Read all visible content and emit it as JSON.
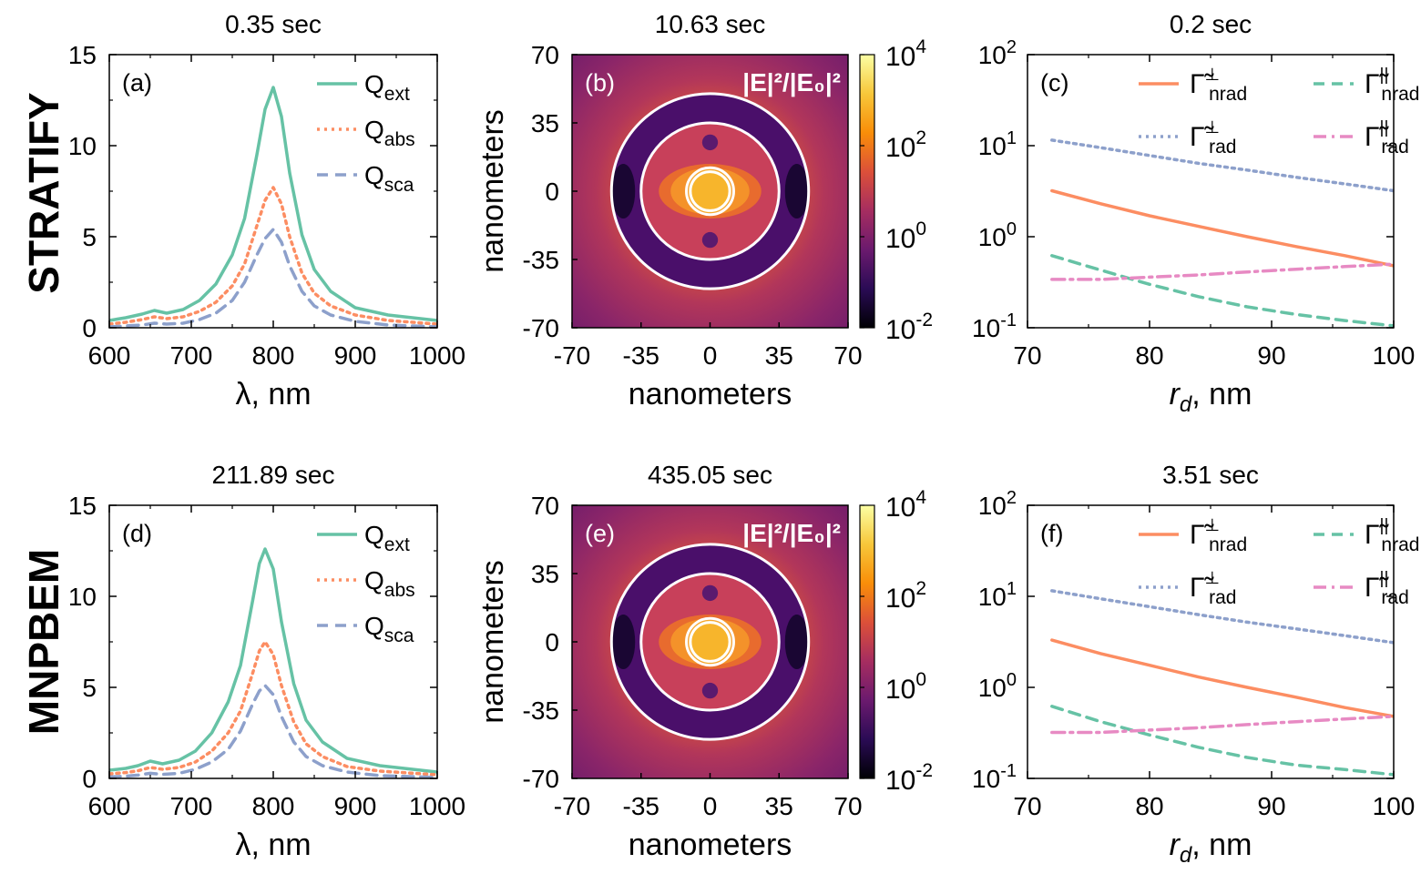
{
  "figure": {
    "row_labels": [
      "STRATIFY",
      "MNPBEM"
    ],
    "colorbar_label": "|E|²/|E₀|²",
    "colormap": [
      "#000004",
      "#2a0b55",
      "#6b1a6e",
      "#a62d60",
      "#dc5039",
      "#f98e09",
      "#f7c73a",
      "#fcffa4"
    ]
  },
  "chart_data": [
    {
      "panel": "a",
      "type": "line",
      "label": "(a)",
      "title": "0.35 sec",
      "xlabel": "λ, nm",
      "ylabel": "",
      "xlim": [
        600,
        1000
      ],
      "ylim": [
        0,
        15
      ],
      "xticks": [
        600,
        700,
        800,
        900,
        1000
      ],
      "yticks": [
        0,
        5,
        10,
        15
      ],
      "x": [
        600,
        620,
        640,
        655,
        670,
        690,
        710,
        730,
        750,
        765,
        780,
        790,
        800,
        810,
        820,
        835,
        850,
        870,
        900,
        940,
        1000
      ],
      "series": [
        {
          "name": "Q_ext",
          "sub": "ext",
          "color": "#66c2a5",
          "dash": "solid",
          "values": [
            0.4,
            0.55,
            0.75,
            0.95,
            0.8,
            1.0,
            1.5,
            2.4,
            4.0,
            6.0,
            9.5,
            12.0,
            13.2,
            11.6,
            8.5,
            5.1,
            3.2,
            2.0,
            1.1,
            0.7,
            0.4
          ]
        },
        {
          "name": "Q_abs",
          "sub": "abs",
          "color": "#fc8d62",
          "dash": "dot",
          "values": [
            0.2,
            0.3,
            0.45,
            0.6,
            0.5,
            0.6,
            0.9,
            1.4,
            2.3,
            3.5,
            5.6,
            7.0,
            7.7,
            6.8,
            5.0,
            3.0,
            1.9,
            1.2,
            0.7,
            0.4,
            0.2
          ]
        },
        {
          "name": "Q_sca",
          "sub": "sca",
          "color": "#8da0cb",
          "dash": "dash",
          "values": [
            0.05,
            0.1,
            0.15,
            0.25,
            0.2,
            0.25,
            0.45,
            0.8,
            1.5,
            2.5,
            4.0,
            4.9,
            5.4,
            4.7,
            3.4,
            2.0,
            1.2,
            0.7,
            0.35,
            0.15,
            0.05
          ]
        }
      ]
    },
    {
      "panel": "b",
      "type": "heatmap",
      "label": "(b)",
      "title": "10.63 sec",
      "xlabel": "nanometers",
      "ylabel": "nanometers",
      "xlim": [
        -70,
        70
      ],
      "ylim": [
        -70,
        70
      ],
      "xticks": [
        -70,
        -35,
        0,
        35,
        70
      ],
      "yticks": [
        -70,
        -35,
        0,
        35,
        70
      ],
      "colorbar": {
        "scale": "log",
        "range": [
          0.01,
          10000
        ],
        "ticks": [
          "10",
          "10",
          "10",
          "10"
        ],
        "exponents": [
          "-2",
          "0",
          "2",
          "4"
        ]
      },
      "circles_nm": [
        10,
        12,
        35,
        50
      ]
    },
    {
      "panel": "c",
      "type": "line",
      "label": "(c)",
      "title": "0.2 sec",
      "xlabel": "r",
      "xlabel_sub": "d",
      "xlabel_unit": ", nm",
      "yscale": "log",
      "xlim": [
        70,
        100
      ],
      "ylim": [
        0.1,
        100
      ],
      "xticks": [
        70,
        80,
        90,
        100
      ],
      "yticks": [
        0.1,
        1,
        10,
        100
      ],
      "ytick_mantissa": [
        "10",
        "10",
        "10",
        "10"
      ],
      "ytick_exponents": [
        "-1",
        "0",
        "1",
        "2"
      ],
      "x": [
        72,
        76,
        80,
        84,
        88,
        92,
        96,
        100
      ],
      "series": [
        {
          "name": "Γ̃⊥nrad",
          "sup": "⊥",
          "sub": "nrad",
          "color": "#fc8d62",
          "dash": "solid",
          "values": [
            3.2,
            2.3,
            1.7,
            1.3,
            1.0,
            0.78,
            0.62,
            0.48
          ]
        },
        {
          "name": "Γ̃||nrad",
          "sup": "||",
          "sub": "nrad",
          "color": "#66c2a5",
          "dash": "dash",
          "values": [
            0.62,
            0.43,
            0.3,
            0.22,
            0.17,
            0.14,
            0.12,
            0.105
          ]
        },
        {
          "name": "Γ̃⊥rad",
          "sup": "⊥",
          "sub": "rad",
          "color": "#8da0cb",
          "dash": "dot",
          "values": [
            11.5,
            9.5,
            7.8,
            6.4,
            5.4,
            4.5,
            3.8,
            3.2
          ]
        },
        {
          "name": "Γ̃||rad",
          "sup": "||",
          "sub": "rad",
          "color": "#e78ac3",
          "dash": "dashdot",
          "values": [
            0.34,
            0.34,
            0.36,
            0.38,
            0.41,
            0.44,
            0.47,
            0.5
          ]
        }
      ]
    },
    {
      "panel": "d",
      "type": "line",
      "label": "(d)",
      "title": "211.89 sec",
      "xlabel": "λ, nm",
      "ylabel": "",
      "xlim": [
        600,
        1000
      ],
      "ylim": [
        0,
        15
      ],
      "xticks": [
        600,
        700,
        800,
        900,
        1000
      ],
      "yticks": [
        0,
        5,
        10,
        15
      ],
      "x": [
        600,
        620,
        635,
        650,
        665,
        685,
        705,
        725,
        745,
        760,
        775,
        783,
        790,
        800,
        810,
        825,
        840,
        860,
        890,
        930,
        1000
      ],
      "series": [
        {
          "name": "Q_ext",
          "sub": "ext",
          "color": "#66c2a5",
          "dash": "solid",
          "values": [
            0.45,
            0.55,
            0.7,
            0.95,
            0.8,
            1.0,
            1.5,
            2.5,
            4.2,
            6.2,
            9.8,
            11.8,
            12.6,
            11.5,
            8.6,
            5.2,
            3.2,
            2.0,
            1.1,
            0.7,
            0.35
          ]
        },
        {
          "name": "Q_abs",
          "sub": "abs",
          "color": "#fc8d62",
          "dash": "dot",
          "values": [
            0.25,
            0.32,
            0.42,
            0.6,
            0.5,
            0.6,
            0.9,
            1.5,
            2.5,
            3.7,
            5.8,
            7.0,
            7.5,
            6.8,
            5.1,
            3.1,
            1.9,
            1.2,
            0.65,
            0.4,
            0.2
          ]
        },
        {
          "name": "Q_sca",
          "sub": "sca",
          "color": "#8da0cb",
          "dash": "dash",
          "values": [
            0.08,
            0.12,
            0.18,
            0.28,
            0.22,
            0.28,
            0.5,
            0.9,
            1.6,
            2.6,
            4.1,
            4.8,
            5.1,
            4.6,
            3.4,
            2.0,
            1.2,
            0.7,
            0.35,
            0.15,
            0.05
          ]
        }
      ]
    },
    {
      "panel": "e",
      "type": "heatmap",
      "label": "(e)",
      "title": "435.05 sec",
      "xlabel": "nanometers",
      "ylabel": "nanometers",
      "xlim": [
        -70,
        70
      ],
      "ylim": [
        -70,
        70
      ],
      "xticks": [
        -70,
        -35,
        0,
        35,
        70
      ],
      "yticks": [
        -70,
        -35,
        0,
        35,
        70
      ],
      "colorbar": {
        "scale": "log",
        "range": [
          0.01,
          10000
        ],
        "ticks": [
          "10",
          "10",
          "10",
          "10"
        ],
        "exponents": [
          "-2",
          "0",
          "2",
          "4"
        ]
      },
      "circles_nm": [
        10,
        12,
        35,
        50
      ]
    },
    {
      "panel": "f",
      "type": "line",
      "label": "(f)",
      "title": "3.51 sec",
      "xlabel": "r",
      "xlabel_sub": "d",
      "xlabel_unit": ", nm",
      "yscale": "log",
      "xlim": [
        70,
        100
      ],
      "ylim": [
        0.1,
        100
      ],
      "xticks": [
        70,
        80,
        90,
        100
      ],
      "yticks": [
        0.1,
        1,
        10,
        100
      ],
      "ytick_mantissa": [
        "10",
        "10",
        "10",
        "10"
      ],
      "ytick_exponents": [
        "-1",
        "0",
        "1",
        "2"
      ],
      "x": [
        72,
        76,
        80,
        84,
        88,
        92,
        96,
        100
      ],
      "series": [
        {
          "name": "Γ̃⊥nrad",
          "sup": "⊥",
          "sub": "nrad",
          "color": "#fc8d62",
          "dash": "solid",
          "values": [
            3.3,
            2.35,
            1.75,
            1.3,
            1.0,
            0.78,
            0.6,
            0.48
          ]
        },
        {
          "name": "Γ̃||nrad",
          "sup": "||",
          "sub": "nrad",
          "color": "#66c2a5",
          "dash": "dash",
          "values": [
            0.62,
            0.42,
            0.3,
            0.22,
            0.17,
            0.14,
            0.125,
            0.11
          ]
        },
        {
          "name": "Γ̃⊥rad",
          "sup": "⊥",
          "sub": "rad",
          "color": "#8da0cb",
          "dash": "dot",
          "values": [
            11.5,
            9.4,
            7.7,
            6.3,
            5.2,
            4.4,
            3.7,
            3.1
          ]
        },
        {
          "name": "Γ̃||rad",
          "sup": "||",
          "sub": "rad",
          "color": "#e78ac3",
          "dash": "dashdot",
          "values": [
            0.32,
            0.32,
            0.34,
            0.36,
            0.39,
            0.42,
            0.45,
            0.48
          ]
        }
      ]
    }
  ]
}
